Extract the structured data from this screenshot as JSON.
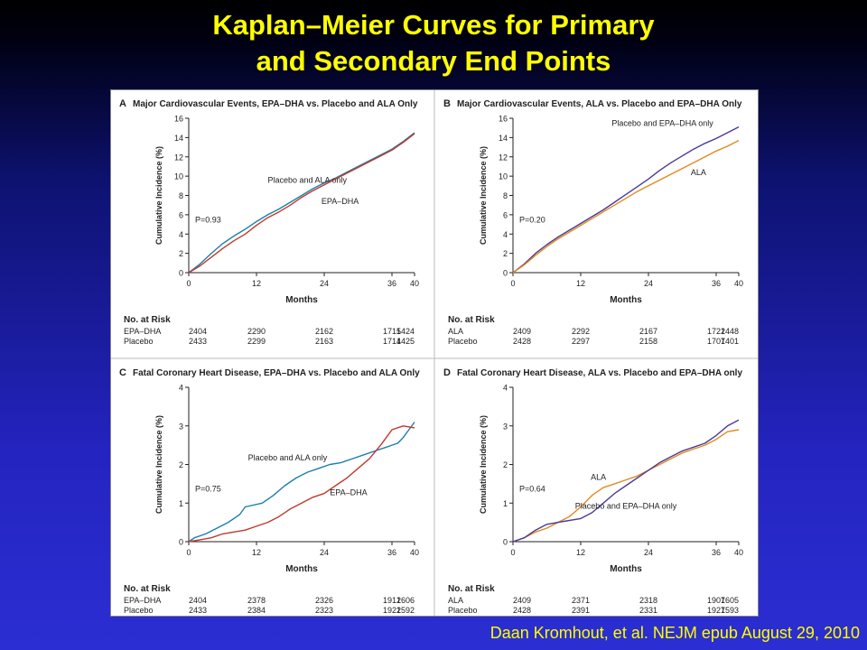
{
  "slide": {
    "title_line1": "Kaplan–Meier Curves for Primary",
    "title_line2": "and Secondary End Points",
    "citation": "Daan Kromhout, et al. NEJM epub  August 29, 2010"
  },
  "colors": {
    "blue": "#1a7fae",
    "red": "#c0392b",
    "purple": "#4a3a9a",
    "orange": "#e08a1e"
  },
  "chart_data": [
    {
      "type": "line",
      "panel": "A",
      "title": "Major Cardiovascular Events, EPA–DHA vs. Placebo and ALA Only",
      "xlabel": "Months",
      "ylabel": "Cumulative Incidence (%)",
      "xlim": [
        0,
        40
      ],
      "ylim": [
        0,
        16
      ],
      "xticks": [
        0,
        12,
        24,
        36,
        40
      ],
      "yticks": [
        0,
        2,
        4,
        6,
        8,
        10,
        12,
        14,
        16
      ],
      "pvalue": "P=0.93",
      "series": [
        {
          "name": "Placebo and ALA only",
          "color": "#1a7fae",
          "label_pos": [
            21,
            9.3
          ],
          "label_anchor": "middle",
          "points": [
            [
              0,
              0
            ],
            [
              2,
              0.9
            ],
            [
              4,
              2.0
            ],
            [
              6,
              3.0
            ],
            [
              8,
              3.8
            ],
            [
              10,
              4.5
            ],
            [
              12,
              5.3
            ],
            [
              14,
              6.0
            ],
            [
              16,
              6.6
            ],
            [
              18,
              7.3
            ],
            [
              20,
              8.0
            ],
            [
              22,
              8.7
            ],
            [
              24,
              9.3
            ],
            [
              26,
              9.8
            ],
            [
              28,
              10.4
            ],
            [
              30,
              11.0
            ],
            [
              32,
              11.6
            ],
            [
              34,
              12.2
            ],
            [
              36,
              12.8
            ],
            [
              38,
              13.6
            ],
            [
              40,
              14.5
            ]
          ]
        },
        {
          "name": "EPA–DHA",
          "color": "#c0392b",
          "label_pos": [
            23.5,
            7.1
          ],
          "label_anchor": "start",
          "points": [
            [
              0,
              0
            ],
            [
              2,
              0.7
            ],
            [
              4,
              1.6
            ],
            [
              6,
              2.5
            ],
            [
              8,
              3.3
            ],
            [
              10,
              4.0
            ],
            [
              12,
              4.9
            ],
            [
              14,
              5.7
            ],
            [
              16,
              6.3
            ],
            [
              18,
              7.0
            ],
            [
              20,
              7.8
            ],
            [
              22,
              8.5
            ],
            [
              24,
              9.1
            ],
            [
              26,
              9.7
            ],
            [
              28,
              10.3
            ],
            [
              30,
              10.9
            ],
            [
              32,
              11.5
            ],
            [
              34,
              12.1
            ],
            [
              36,
              12.7
            ],
            [
              38,
              13.5
            ],
            [
              40,
              14.4
            ]
          ]
        }
      ],
      "risk_table": {
        "header": "No. at Risk",
        "rows": [
          {
            "label": "EPA–DHA",
            "values": [
              "2404",
              "2290",
              "2162",
              "1715",
              "1424"
            ]
          },
          {
            "label": "Placebo",
            "values": [
              "2433",
              "2299",
              "2163",
              "1714",
              "1425"
            ]
          }
        ]
      }
    },
    {
      "type": "line",
      "panel": "B",
      "title": "Major Cardiovascular Events, ALA vs. Placebo and EPA–DHA Only",
      "xlabel": "Months",
      "ylabel": "Cumulative Incidence (%)",
      "xlim": [
        0,
        40
      ],
      "ylim": [
        0,
        16
      ],
      "xticks": [
        0,
        12,
        24,
        36,
        40
      ],
      "yticks": [
        0,
        2,
        4,
        6,
        8,
        10,
        12,
        14,
        16
      ],
      "pvalue": "P=0.20",
      "series": [
        {
          "name": "Placebo and EPA–DHA only",
          "color": "#4a3a9a",
          "label_pos": [
            17.5,
            15.2
          ],
          "label_anchor": "start",
          "points": [
            [
              0,
              0
            ],
            [
              2,
              0.9
            ],
            [
              4,
              2.0
            ],
            [
              6,
              2.9
            ],
            [
              8,
              3.7
            ],
            [
              10,
              4.4
            ],
            [
              12,
              5.1
            ],
            [
              14,
              5.8
            ],
            [
              16,
              6.5
            ],
            [
              18,
              7.3
            ],
            [
              20,
              8.1
            ],
            [
              22,
              8.9
            ],
            [
              24,
              9.7
            ],
            [
              26,
              10.6
            ],
            [
              28,
              11.4
            ],
            [
              30,
              12.1
            ],
            [
              32,
              12.8
            ],
            [
              34,
              13.4
            ],
            [
              36,
              13.9
            ],
            [
              38,
              14.5
            ],
            [
              40,
              15.1
            ]
          ]
        },
        {
          "name": "ALA",
          "color": "#e08a1e",
          "label_pos": [
            31.5,
            10.1
          ],
          "label_anchor": "start",
          "points": [
            [
              0,
              0
            ],
            [
              2,
              0.8
            ],
            [
              4,
              1.8
            ],
            [
              6,
              2.7
            ],
            [
              8,
              3.5
            ],
            [
              10,
              4.2
            ],
            [
              12,
              4.9
            ],
            [
              14,
              5.6
            ],
            [
              16,
              6.3
            ],
            [
              18,
              7.0
            ],
            [
              20,
              7.7
            ],
            [
              22,
              8.4
            ],
            [
              24,
              9.0
            ],
            [
              26,
              9.6
            ],
            [
              28,
              10.2
            ],
            [
              30,
              10.8
            ],
            [
              32,
              11.4
            ],
            [
              34,
              12.0
            ],
            [
              36,
              12.6
            ],
            [
              38,
              13.1
            ],
            [
              40,
              13.7
            ]
          ]
        }
      ],
      "risk_table": {
        "header": "No. at Risk",
        "rows": [
          {
            "label": "ALA",
            "values": [
              "2409",
              "2292",
              "2167",
              "1722",
              "1448"
            ]
          },
          {
            "label": "Placebo",
            "values": [
              "2428",
              "2297",
              "2158",
              "1707",
              "1401"
            ]
          }
        ]
      }
    },
    {
      "type": "line",
      "panel": "C",
      "title": "Fatal Coronary Heart Disease, EPA–DHA vs. Placebo and ALA Only",
      "xlabel": "Months",
      "ylabel": "Cumulative Incidence (%)",
      "xlim": [
        0,
        40
      ],
      "ylim": [
        0,
        4
      ],
      "xticks": [
        0,
        12,
        24,
        36,
        40
      ],
      "yticks": [
        0,
        1,
        2,
        3,
        4
      ],
      "pvalue": "P=0.75",
      "series": [
        {
          "name": "Placebo and ALA only",
          "color": "#1a7fae",
          "label_pos": [
            10.5,
            2.1
          ],
          "label_anchor": "start",
          "points": [
            [
              0,
              0
            ],
            [
              1,
              0.1
            ],
            [
              3,
              0.2
            ],
            [
              5,
              0.35
            ],
            [
              7,
              0.5
            ],
            [
              9,
              0.7
            ],
            [
              10,
              0.9
            ],
            [
              13,
              1.0
            ],
            [
              15,
              1.2
            ],
            [
              17,
              1.45
            ],
            [
              19,
              1.65
            ],
            [
              21,
              1.8
            ],
            [
              23,
              1.9
            ],
            [
              25,
              2.0
            ],
            [
              27,
              2.05
            ],
            [
              29,
              2.15
            ],
            [
              31,
              2.25
            ],
            [
              33,
              2.35
            ],
            [
              35,
              2.45
            ],
            [
              36,
              2.5
            ],
            [
              37,
              2.55
            ],
            [
              38,
              2.7
            ],
            [
              39,
              2.9
            ],
            [
              40,
              3.1
            ]
          ]
        },
        {
          "name": "EPA–DHA",
          "color": "#c0392b",
          "label_pos": [
            25,
            1.2
          ],
          "label_anchor": "start",
          "points": [
            [
              0,
              0
            ],
            [
              2,
              0.05
            ],
            [
              4,
              0.1
            ],
            [
              6,
              0.2
            ],
            [
              8,
              0.25
            ],
            [
              10,
              0.3
            ],
            [
              12,
              0.4
            ],
            [
              14,
              0.5
            ],
            [
              16,
              0.65
            ],
            [
              18,
              0.85
            ],
            [
              20,
              1.0
            ],
            [
              22,
              1.15
            ],
            [
              24,
              1.25
            ],
            [
              26,
              1.45
            ],
            [
              28,
              1.65
            ],
            [
              30,
              1.9
            ],
            [
              32,
              2.15
            ],
            [
              34,
              2.5
            ],
            [
              35,
              2.7
            ],
            [
              36,
              2.9
            ],
            [
              38,
              3.0
            ],
            [
              40,
              2.95
            ]
          ]
        }
      ],
      "risk_table": {
        "header": "No. at Risk",
        "rows": [
          {
            "label": "EPA–DHA",
            "values": [
              "2404",
              "2378",
              "2326",
              "1912",
              "1606"
            ]
          },
          {
            "label": "Placebo",
            "values": [
              "2433",
              "2384",
              "2323",
              "1922",
              "1592"
            ]
          }
        ]
      }
    },
    {
      "type": "line",
      "panel": "D",
      "title": "Fatal Coronary Heart Disease, ALA vs. Placebo and EPA–DHA only",
      "xlabel": "Months",
      "ylabel": "Cumulative Incidence (%)",
      "xlim": [
        0,
        40
      ],
      "ylim": [
        0,
        4
      ],
      "xticks": [
        0,
        12,
        24,
        36,
        40
      ],
      "yticks": [
        0,
        1,
        2,
        3,
        4
      ],
      "pvalue": "P=0.64",
      "series": [
        {
          "name": "ALA",
          "color": "#e08a1e",
          "label_pos": [
            16.5,
            1.6
          ],
          "label_anchor": "end",
          "points": [
            [
              0,
              0
            ],
            [
              2,
              0.1
            ],
            [
              4,
              0.25
            ],
            [
              6,
              0.35
            ],
            [
              8,
              0.5
            ],
            [
              10,
              0.65
            ],
            [
              12,
              0.9
            ],
            [
              14,
              1.2
            ],
            [
              16,
              1.4
            ],
            [
              18,
              1.5
            ],
            [
              20,
              1.6
            ],
            [
              22,
              1.7
            ],
            [
              24,
              1.85
            ],
            [
              26,
              2.0
            ],
            [
              28,
              2.15
            ],
            [
              30,
              2.3
            ],
            [
              32,
              2.4
            ],
            [
              34,
              2.5
            ],
            [
              36,
              2.65
            ],
            [
              38,
              2.85
            ],
            [
              40,
              2.9
            ]
          ]
        },
        {
          "name": "Placebo and EPA–DHA only",
          "color": "#4a3a9a",
          "label_pos": [
            20,
            0.85
          ],
          "label_anchor": "middle",
          "points": [
            [
              0,
              0
            ],
            [
              2,
              0.1
            ],
            [
              4,
              0.3
            ],
            [
              6,
              0.45
            ],
            [
              8,
              0.5
            ],
            [
              10,
              0.55
            ],
            [
              12,
              0.6
            ],
            [
              14,
              0.75
            ],
            [
              16,
              1.0
            ],
            [
              18,
              1.25
            ],
            [
              20,
              1.45
            ],
            [
              22,
              1.65
            ],
            [
              24,
              1.85
            ],
            [
              26,
              2.05
            ],
            [
              28,
              2.2
            ],
            [
              30,
              2.35
            ],
            [
              32,
              2.45
            ],
            [
              34,
              2.55
            ],
            [
              36,
              2.75
            ],
            [
              38,
              3.0
            ],
            [
              40,
              3.15
            ]
          ]
        }
      ],
      "risk_table": {
        "header": "No. at Risk",
        "rows": [
          {
            "label": "ALA",
            "values": [
              "2409",
              "2371",
              "2318",
              "1907",
              "1605"
            ]
          },
          {
            "label": "Placebo",
            "values": [
              "2428",
              "2391",
              "2331",
              "1927",
              "1593"
            ]
          }
        ]
      }
    }
  ]
}
